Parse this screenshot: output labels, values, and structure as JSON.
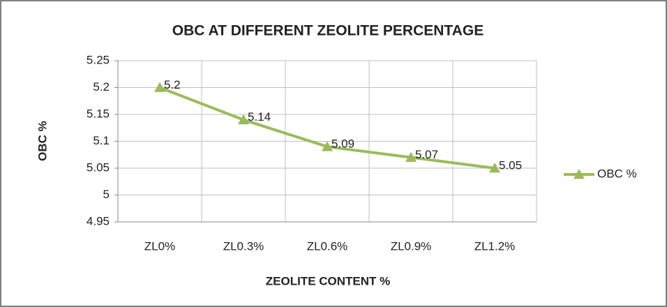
{
  "chart_data": {
    "type": "line",
    "title": "OBC AT DIFFERENT ZEOLITE PERCENTAGE",
    "x_label": "ZEOLITE CONTENT %",
    "y_label": "OBC %",
    "categories": [
      "ZL0%",
      "ZL0.3%",
      "ZL0.6%",
      "ZL0.9%",
      "ZL1.2%"
    ],
    "series": [
      {
        "name": "OBC %",
        "color": "#9bbb59",
        "values": [
          5.2,
          5.14,
          5.09,
          5.07,
          5.05
        ]
      }
    ],
    "ylim": [
      4.95,
      5.25
    ],
    "yticks": [
      4.95,
      5,
      5.05,
      5.1,
      5.15,
      5.2,
      5.25
    ],
    "grid": true,
    "legend": "right"
  }
}
